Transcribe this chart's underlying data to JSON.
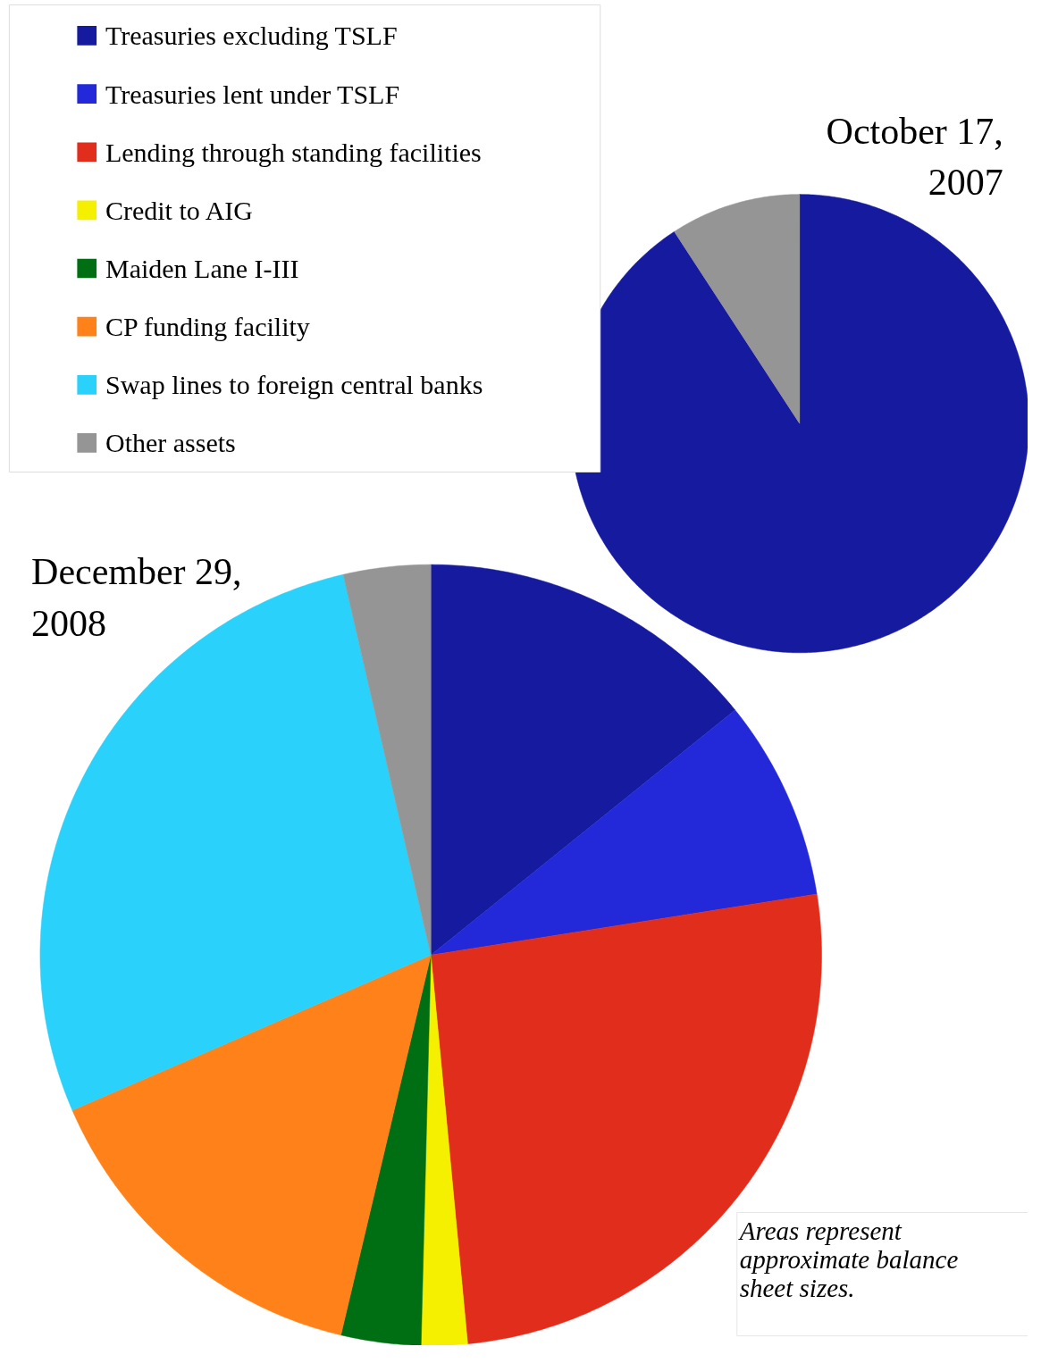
{
  "chart_data": {
    "type": "pie",
    "categories": [
      "Treasuries excluding TSLF",
      "Treasuries lent under TSLF",
      "Lending through standing facilities",
      "Credit to AIG",
      "Maiden Lane I-III",
      "CP funding facility",
      "Swap lines to foreign central banks",
      "Other assets"
    ],
    "colors": [
      "#161a9e",
      "#2329d9",
      "#e12d1b",
      "#f5ef00",
      "#006e12",
      "#fe8119",
      "#2ad1fa",
      "#959595"
    ],
    "series": [
      {
        "name": "October 17,\n2007",
        "values": [
          90.8,
          0,
          0,
          0,
          0,
          0,
          0,
          9.2
        ]
      },
      {
        "name": "December 29,\n2008",
        "values": [
          14.2,
          8.3,
          26.0,
          1.9,
          3.3,
          14.8,
          27.9,
          3.6
        ]
      }
    ],
    "legend": "top left",
    "annotations": [
      "Areas represent\napproximate balance\nsheet sizes."
    ]
  }
}
